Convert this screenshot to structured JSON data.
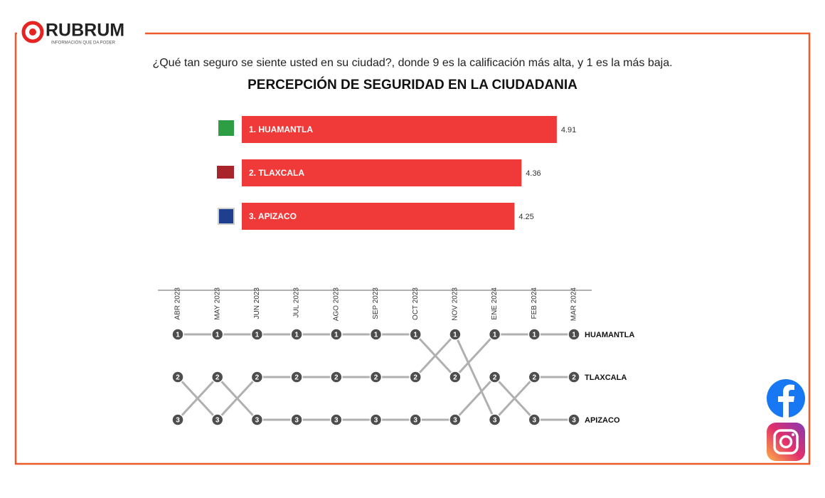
{
  "brand": {
    "name": "RUBRUM",
    "tagline": "INFORMACIÓN QUE DA PODER"
  },
  "chart_data": [
    {
      "type": "bar",
      "title": "PERCEPCIÓN DE SEGURIDAD EN LA CIUDADANIA",
      "subtitle": "¿Qué tan seguro se siente usted en su ciudad?, donde 9 es la calificación más alta, y  1 es la más baja.",
      "categories": [
        "1. HUAMANTLA",
        "2. TLAXCALA",
        "3. APIZACO"
      ],
      "values": [
        4.91,
        4.36,
        4.25
      ],
      "color": "#f03a3a"
    },
    {
      "type": "bump",
      "categories": [
        "ABR 2023",
        "MAY 2023",
        "JUN 2023",
        "JUL 2023",
        "AGO 2023",
        "SEP 2023",
        "OCT 2023",
        "NOV 2023",
        "ENE 2024",
        "FEB 2024",
        "MAR 2024"
      ],
      "series": [
        {
          "name": "HUAMANTLA",
          "color": "#b0b0b0",
          "values": [
            1,
            1,
            1,
            1,
            1,
            1,
            1,
            2,
            1,
            1,
            1
          ]
        },
        {
          "name": "TLAXCALA",
          "color": "#b0b0b0",
          "values": [
            2,
            3,
            2,
            2,
            2,
            2,
            2,
            1,
            3,
            2,
            2
          ]
        },
        {
          "name": "APIZACO",
          "color": "#b0b0b0",
          "values": [
            3,
            2,
            3,
            3,
            3,
            3,
            3,
            3,
            2,
            3,
            3
          ]
        }
      ]
    }
  ]
}
